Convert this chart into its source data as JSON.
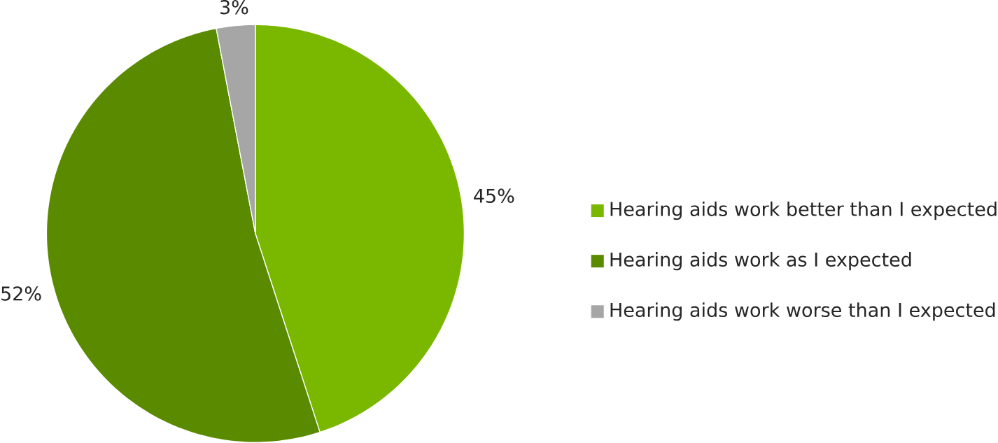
{
  "chart_data": {
    "type": "pie",
    "categories": [
      "Hearing aids work better than I expected",
      "Hearing aids work as I expected",
      "Hearing aids work worse than I expected"
    ],
    "values": [
      45,
      52,
      3
    ],
    "colors": [
      "#7ab800",
      "#5a8a00",
      "#a6a6a6"
    ],
    "value_labels": [
      "45%",
      "52%",
      "3%"
    ],
    "legend": "right"
  }
}
